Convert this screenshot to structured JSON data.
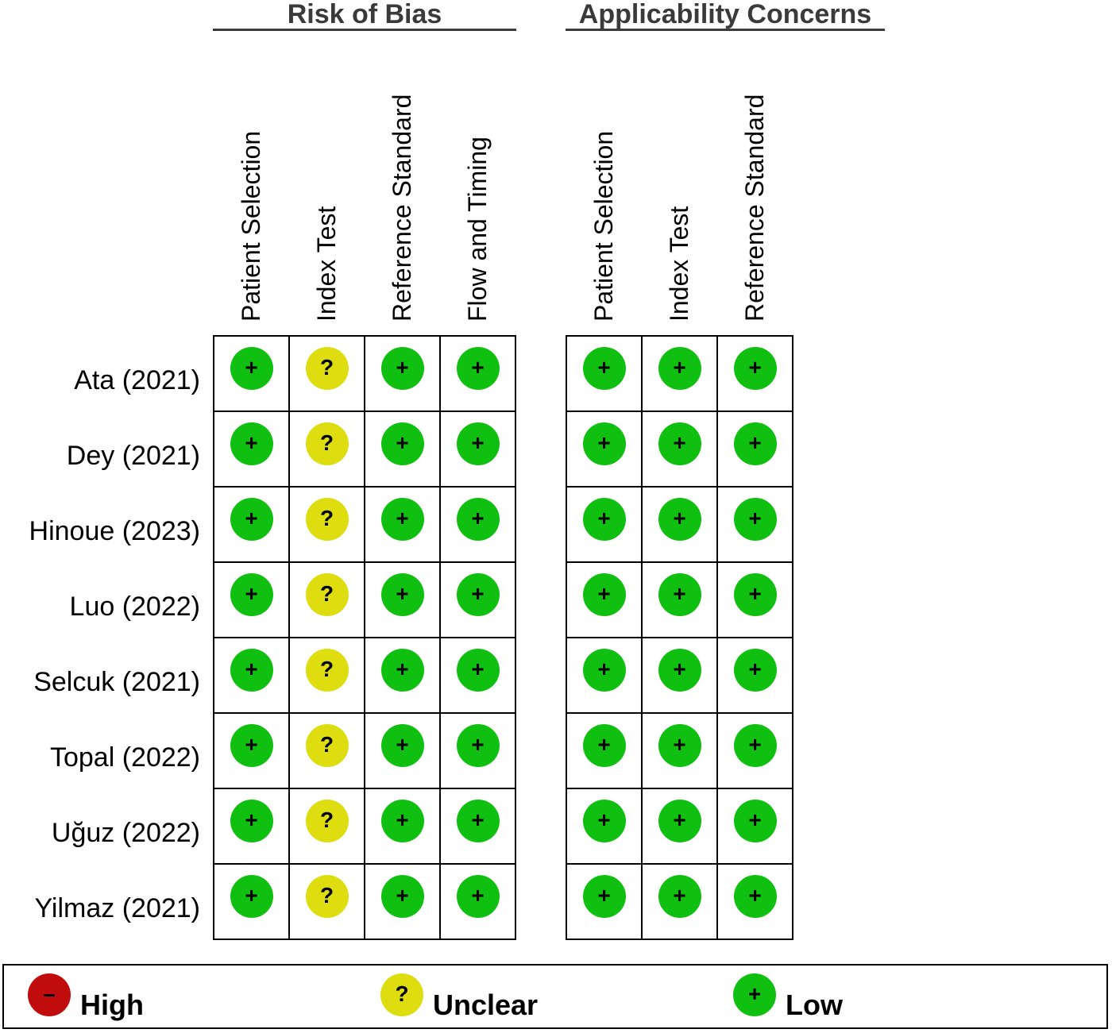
{
  "groups": {
    "risk_of_bias": "Risk of Bias",
    "applicability": "Applicability Concerns"
  },
  "columns": {
    "risk_of_bias": [
      "Patient Selection",
      "Index Test",
      "Reference Standard",
      "Flow and Timing"
    ],
    "applicability": [
      "Patient Selection",
      "Index Test",
      "Reference Standard"
    ]
  },
  "studies": [
    "Ata (2021)",
    "Dey (2021)",
    "Hinoue (2023)",
    "Luo (2022)",
    "Selcuk (2021)",
    "Topal (2022)",
    "Uğuz (2022)",
    "Yilmaz (2021)"
  ],
  "ratings": {
    "risk_of_bias": [
      [
        "low",
        "unclear",
        "low",
        "low"
      ],
      [
        "low",
        "unclear",
        "low",
        "low"
      ],
      [
        "low",
        "unclear",
        "low",
        "low"
      ],
      [
        "low",
        "unclear",
        "low",
        "low"
      ],
      [
        "low",
        "unclear",
        "low",
        "low"
      ],
      [
        "low",
        "unclear",
        "low",
        "low"
      ],
      [
        "low",
        "unclear",
        "low",
        "low"
      ],
      [
        "low",
        "unclear",
        "low",
        "low"
      ]
    ],
    "applicability": [
      [
        "low",
        "low",
        "low"
      ],
      [
        "low",
        "low",
        "low"
      ],
      [
        "low",
        "low",
        "low"
      ],
      [
        "low",
        "low",
        "low"
      ],
      [
        "low",
        "low",
        "low"
      ],
      [
        "low",
        "low",
        "low"
      ],
      [
        "low",
        "low",
        "low"
      ],
      [
        "low",
        "low",
        "low"
      ]
    ]
  },
  "symbols": {
    "low": "+",
    "unclear": "?",
    "high": "–"
  },
  "colors": {
    "low": "#10c010",
    "unclear": "#dddd10",
    "high": "#c00c0c"
  },
  "legend": [
    {
      "key": "high",
      "symbol": "–",
      "label": "High"
    },
    {
      "key": "unclear",
      "symbol": "?",
      "label": "Unclear"
    },
    {
      "key": "low",
      "symbol": "+",
      "label": "Low"
    }
  ]
}
